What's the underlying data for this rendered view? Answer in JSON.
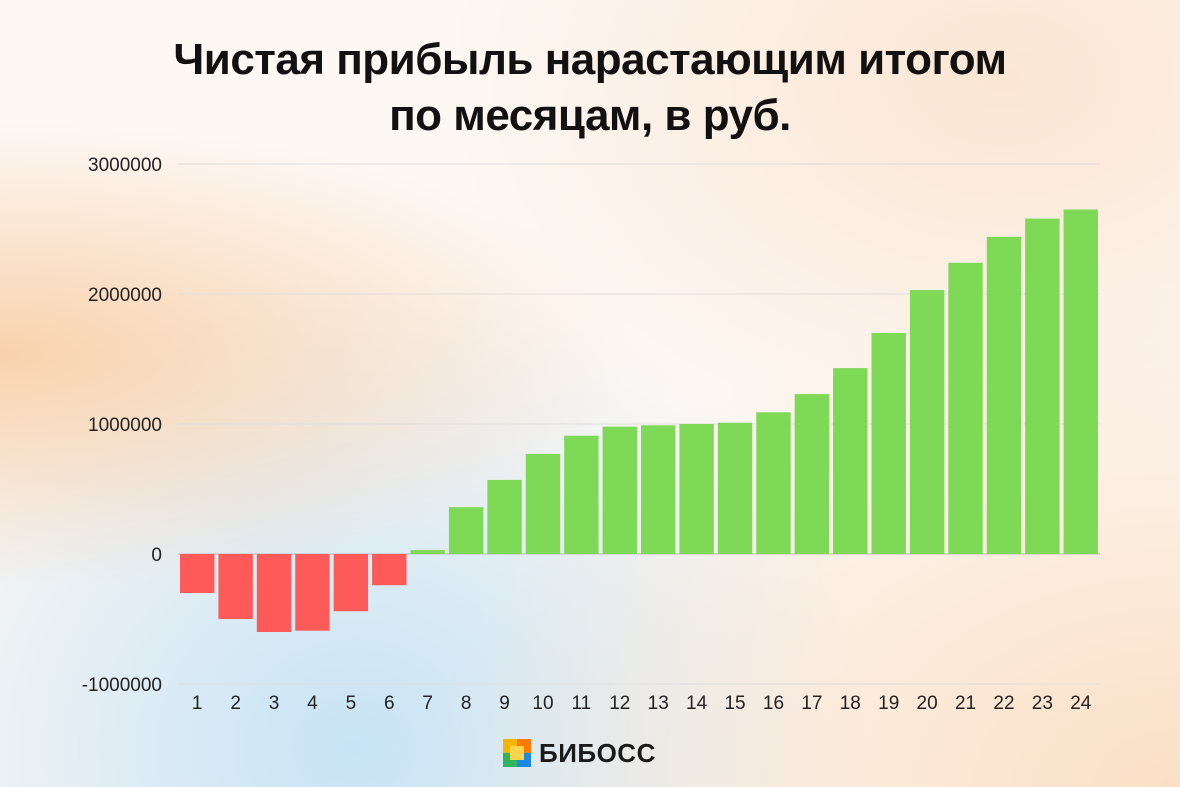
{
  "title_line1": "Чистая прибыль нарастающим итогом",
  "title_line2": "по месяцам, в руб.",
  "brand": {
    "name": "БИБОСС",
    "logo": "bibocc-logo"
  },
  "colors": {
    "positive": "#7ed957",
    "negative": "#ff5a5a",
    "grid": "#dddddd"
  },
  "chart_data": {
    "type": "bar",
    "title": "Чистая прибыль нарастающим итогом по месяцам, в руб.",
    "xlabel": "",
    "ylabel": "",
    "ylim": [
      -1000000,
      3000000
    ],
    "yticks": [
      3000000,
      2000000,
      1000000,
      0,
      -1000000
    ],
    "ytick_labels": [
      "3000000",
      "2000000",
      "1000000",
      "0",
      "-1000000"
    ],
    "grid": true,
    "legend": "none",
    "categories": [
      "1",
      "2",
      "3",
      "4",
      "5",
      "6",
      "7",
      "8",
      "9",
      "10",
      "11",
      "12",
      "13",
      "14",
      "15",
      "16",
      "17",
      "18",
      "19",
      "20",
      "21",
      "22",
      "23",
      "24"
    ],
    "values": [
      -300000,
      -500000,
      -600000,
      -590000,
      -440000,
      -240000,
      30000,
      360000,
      570000,
      770000,
      910000,
      980000,
      990000,
      1000000,
      1010000,
      1090000,
      1230000,
      1430000,
      1700000,
      2030000,
      2240000,
      2440000,
      2580000,
      2650000
    ]
  }
}
